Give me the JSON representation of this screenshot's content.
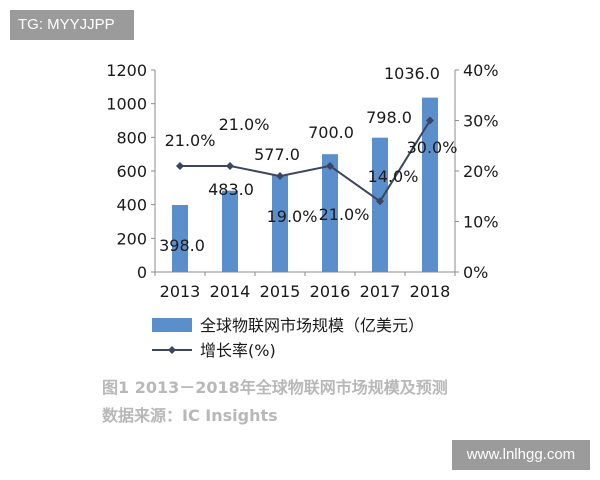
{
  "watermark_top": "TG: MYYJJPP",
  "watermark_bottom": "www.lnlhgg.com",
  "caption": {
    "line1": "图1  2013－2018年全球物联网市场规模及预测",
    "line2": "数据来源：IC Insights"
  },
  "colors": {
    "bar": "#5b8fcc",
    "line": "#3c4560",
    "axis": "#8c8c8c",
    "text": "#1a1a1a"
  },
  "chart_data": {
    "type": "bar",
    "categories": [
      "2013",
      "2014",
      "2015",
      "2016",
      "2017",
      "2018"
    ],
    "series": [
      {
        "name": "全球物联网市场规模（亿美元）",
        "type": "bar",
        "axis": "left",
        "values": [
          398.0,
          483.0,
          577.0,
          700.0,
          798.0,
          1036.0
        ],
        "labels": [
          "398.0",
          "483.0",
          "577.0",
          "700.0",
          "798.0",
          "1036.0"
        ]
      },
      {
        "name": "增长率(%)",
        "type": "line",
        "axis": "right",
        "values": [
          21.0,
          21.0,
          19.0,
          21.0,
          14.0,
          30.0
        ],
        "labels": [
          "21.0%",
          "21.0%",
          "19.0%",
          "21.0%",
          "14.0%",
          "30.0%"
        ]
      }
    ],
    "y_left": {
      "ylim": [
        0,
        1200
      ],
      "ticks": [
        "0",
        "200",
        "400",
        "600",
        "800",
        "1000",
        "1200"
      ]
    },
    "y_right": {
      "ylim": [
        0,
        40
      ],
      "ticks": [
        "0%",
        "10%",
        "20%",
        "30%",
        "40%"
      ]
    },
    "legend": "bottom",
    "grid": false
  }
}
